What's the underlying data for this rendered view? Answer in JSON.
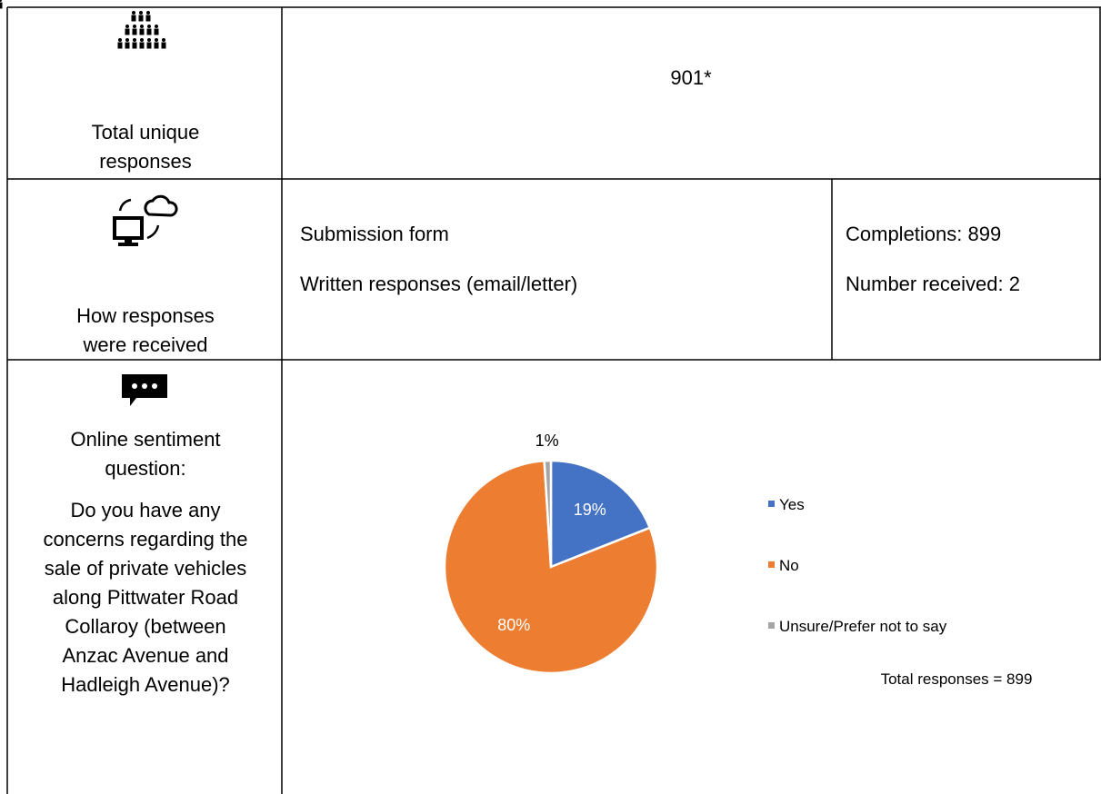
{
  "table": {
    "rows": [
      {
        "label": "Total unique responses",
        "value": "901*"
      },
      {
        "label": "How responses were received",
        "items": [
          {
            "name": "Submission form",
            "value": "Completions: 899"
          },
          {
            "name": "Written responses (email/letter)",
            "value": "Number received: 2"
          }
        ]
      },
      {
        "label": "Online sentiment question:",
        "question": "Do you have any concerns regarding the sale of private vehicles along Pittwater Road Collaroy (between Anzac Avenue and Hadleigh Avenue)?"
      }
    ]
  },
  "chart_data": {
    "type": "pie",
    "categories": [
      "Yes",
      "No",
      "Unsure/Prefer not to say"
    ],
    "values": [
      19,
      80,
      1
    ],
    "value_labels": [
      "19%",
      "80%",
      "1%"
    ],
    "colors": [
      "#4472c4",
      "#ed7d31",
      "#a5a5a5"
    ],
    "legend": "right",
    "note": "Total responses = 899"
  }
}
